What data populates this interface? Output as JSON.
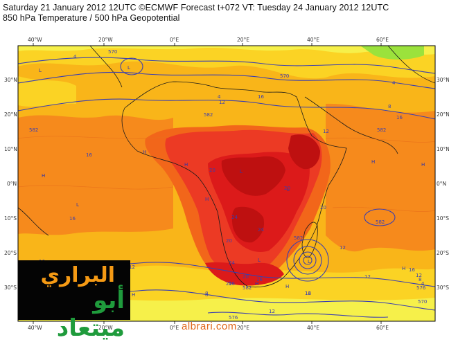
{
  "header": {
    "line1": "Saturday 21 January 2012 12UTC ©ECMWF Forecast t+072 VT: Tuesday 24 January 2012 12UTC",
    "line2": "850 hPa Temperature / 500 hPa Geopotential"
  },
  "axes": {
    "top_lon": [
      "40°W",
      "20°W",
      "0°E",
      "20°E",
      "40°E",
      "60°E"
    ],
    "bottom_lon": [
      "40°W",
      "20°W",
      "0°E",
      "20°E",
      "40°E",
      "60°E"
    ],
    "left_lat": [
      "30°N",
      "20°N",
      "10°N",
      "0°N",
      "10°S",
      "20°S",
      "30°S"
    ],
    "right_lat": [
      "30°N",
      "20°N",
      "10°N",
      "0°N",
      "10°S",
      "20°S",
      "30°S"
    ]
  },
  "contour_labels": [
    "570",
    "570",
    "582",
    "582",
    "582",
    "582",
    "582",
    "576",
    "570",
    "582",
    "576"
  ],
  "temperature_labels": [
    "4",
    "12",
    "16",
    "16",
    "16",
    "12",
    "20",
    "20",
    "24",
    "20",
    "24",
    "24",
    "20",
    "20",
    "16",
    "12",
    "8",
    "4",
    "8",
    "12",
    "16",
    "12",
    "4",
    "8",
    "4",
    "16",
    "12",
    "16",
    "8",
    "12",
    "16",
    "16",
    "12",
    "20"
  ],
  "pressure_centres": [
    "L",
    "L",
    "L",
    "H",
    "H",
    "H",
    "H",
    "H",
    "H",
    "H",
    "H",
    "L",
    "L",
    "H",
    "H",
    "L",
    "L"
  ],
  "colors": {
    "frame": "#000000",
    "contour": "#3a3fb0",
    "level_green": "#9be23c",
    "level_lightyellow": "#f6f04a",
    "level_yellow": "#fbd324",
    "level_amber": "#f9b519",
    "level_orange": "#f68a1c",
    "level_darkorange": "#f2661a",
    "level_red": "#ec3a24",
    "level_crimson": "#dc1a1a",
    "level_darkred": "#be1010"
  },
  "logo": {
    "arabic_line1": "البراري",
    "arabic_line2": "أبو ميتعاد"
  },
  "footer": {
    "site": "albrari.com"
  }
}
